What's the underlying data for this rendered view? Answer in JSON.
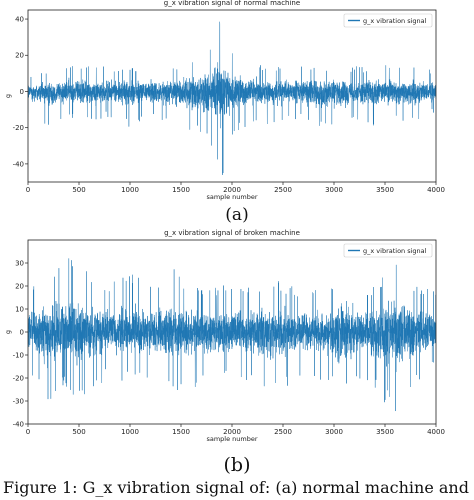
{
  "chart_data": [
    {
      "type": "line",
      "title": "g_x vibration signal of normal machine",
      "xlabel": "sample number",
      "ylabel": "g",
      "xlim": [
        0,
        4000
      ],
      "ylim": [
        -50,
        45
      ],
      "xticks": [
        0,
        500,
        1000,
        1500,
        2000,
        2500,
        3000,
        3500,
        4000
      ],
      "yticks": [
        -40,
        -20,
        0,
        20,
        40
      ],
      "legend": "top-right",
      "color": "#1f77b4",
      "series": [
        {
          "name": "g_x vibration signal",
          "x": [
            0,
            200,
            400,
            600,
            800,
            1000,
            1200,
            1400,
            1600,
            1800,
            1850,
            1900,
            1950,
            2000,
            2200,
            2400,
            2600,
            2800,
            3000,
            3200,
            3400,
            3600,
            3800,
            4000
          ],
          "y_max": [
            10,
            12,
            16,
            14,
            14,
            13,
            15,
            14,
            18,
            25,
            35,
            44,
            30,
            22,
            16,
            14,
            15,
            14,
            14,
            14,
            14,
            15,
            14,
            12
          ],
          "y_min": [
            -12,
            -20,
            -15,
            -18,
            -14,
            -20,
            -14,
            -18,
            -22,
            -30,
            -44,
            -50,
            -38,
            -25,
            -18,
            -20,
            -15,
            -18,
            -22,
            -15,
            -20,
            -17,
            -16,
            -12
          ]
        }
      ]
    },
    {
      "type": "line",
      "title": "g_x vibration signal of broken machine",
      "xlabel": "sample number",
      "ylabel": "g",
      "xlim": [
        0,
        4000
      ],
      "ylim": [
        -40,
        40
      ],
      "xticks": [
        0,
        500,
        1000,
        1500,
        2000,
        2500,
        3000,
        3500,
        4000
      ],
      "yticks": [
        -40,
        -30,
        -20,
        -10,
        0,
        10,
        20,
        30
      ],
      "legend": "top-right",
      "color": "#1f77b4",
      "series": [
        {
          "name": "g_x vibration signal",
          "x": [
            0,
            200,
            350,
            500,
            800,
            1000,
            1200,
            1400,
            1600,
            1800,
            2000,
            2200,
            2400,
            2600,
            2800,
            3000,
            3050,
            3200,
            3400,
            3600,
            3800,
            4000
          ],
          "y_max": [
            20,
            25,
            36,
            28,
            22,
            28,
            20,
            30,
            22,
            20,
            22,
            20,
            23,
            20,
            20,
            20,
            34,
            22,
            20,
            30,
            22,
            18
          ],
          "y_min": [
            -18,
            -34,
            -25,
            -30,
            -20,
            -22,
            -20,
            -26,
            -25,
            -22,
            -20,
            -22,
            -28,
            -22,
            -20,
            -25,
            -37,
            -22,
            -25,
            -37,
            -22,
            -15
          ]
        }
      ]
    }
  ],
  "panel_labels": {
    "a": "(a)",
    "b": "(b)"
  },
  "caption": "Figure 1: G_x vibration signal of: (a) normal machine and"
}
